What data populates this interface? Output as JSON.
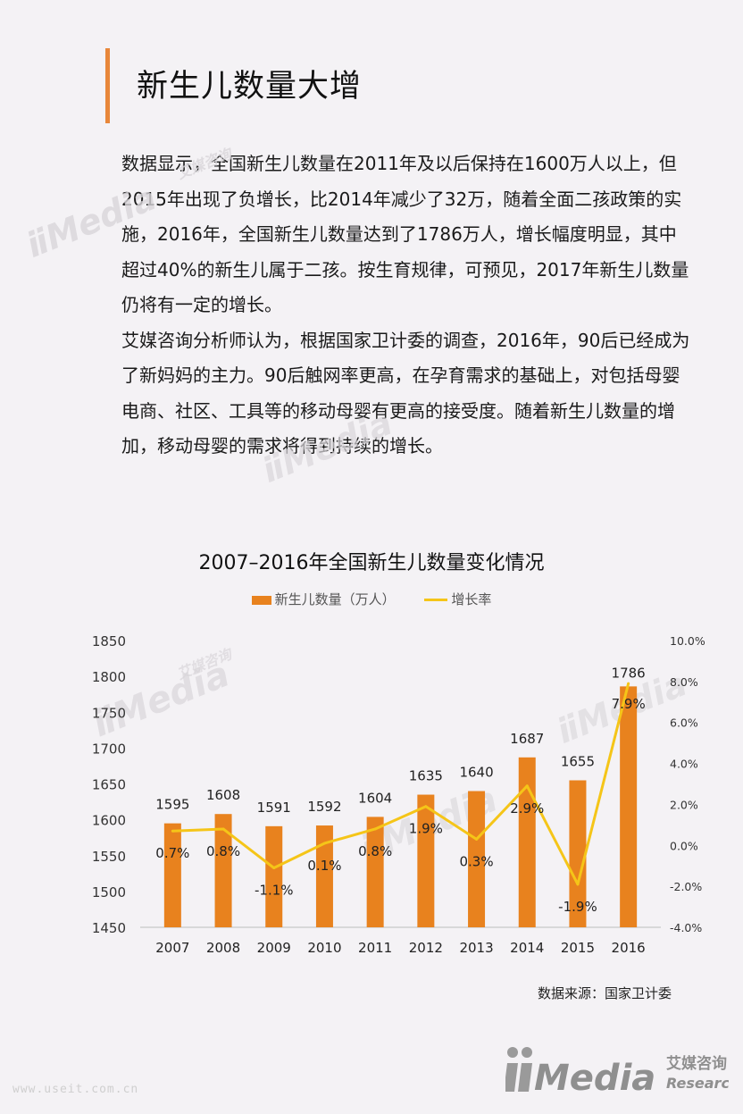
{
  "page": {
    "title": "新生儿数量大增",
    "paragraphs": [
      "数据显示，全国新生儿数量在2011年及以后保持在1600万人以上，但2015年出现了负增长，比2014年减少了32万，随着全面二孩政策的实施，2016年，全国新生儿数量达到了1786万人，增长幅度明显，其中超过40%的新生儿属于二孩。按生育规律，可预见，2017年新生儿数量仍将有一定的增长。",
      "艾媒咨询分析师认为，根据国家卫计委的调查，2016年，90后已经成为了新妈妈的主力。90后触网率更高，在孕育需求的基础上，对包括母婴电商、社区、工具等的移动母婴有更高的接受度。随着新生儿数量的增加，移动母婴的需求将得到持续的增长。"
    ],
    "source": "数据来源：国家卫计委",
    "watermark_brand": "Media",
    "watermark_cn": "艾媒咨询",
    "watermark_en": "Research",
    "footer_url": "www.useit.com.cn"
  },
  "chart_data": {
    "type": "bar",
    "title": "2007–2016年全国新生儿数量变化情况",
    "categories": [
      "2007",
      "2008",
      "2009",
      "2010",
      "2011",
      "2012",
      "2013",
      "2014",
      "2015",
      "2016"
    ],
    "series": [
      {
        "name": "新生儿数量（万人）",
        "type": "bar",
        "axis": "left",
        "values": [
          1595,
          1608,
          1591,
          1592,
          1604,
          1635,
          1640,
          1687,
          1655,
          1786
        ],
        "labels": [
          "1595",
          "1608",
          "1591",
          "1592",
          "1604",
          "1635",
          "1640",
          "1687",
          "1655",
          "1786"
        ],
        "color": "#e8821e"
      },
      {
        "name": "增长率",
        "type": "line",
        "axis": "right",
        "values": [
          0.7,
          0.8,
          -1.1,
          0.1,
          0.8,
          1.9,
          0.3,
          2.9,
          -1.9,
          7.9
        ],
        "labels": [
          "0.7%",
          "0.8%",
          "-1.1%",
          "0.1%",
          "0.8%",
          "1.9%",
          "0.3%",
          "2.9%",
          "-1.9%",
          "7.9%"
        ],
        "color": "#f5c518"
      }
    ],
    "y_left": {
      "range": [
        1450,
        1850
      ],
      "ticks": [
        "1450",
        "1500",
        "1550",
        "1600",
        "1650",
        "1700",
        "1750",
        "1800",
        "1850"
      ]
    },
    "y_right": {
      "range": [
        -4,
        10
      ],
      "ticks": [
        "-4.0%",
        "-2.0%",
        "0.0%",
        "2.0%",
        "4.0%",
        "6.0%",
        "8.0%",
        "10.0%"
      ]
    },
    "grid": false,
    "legend": "top-center"
  }
}
